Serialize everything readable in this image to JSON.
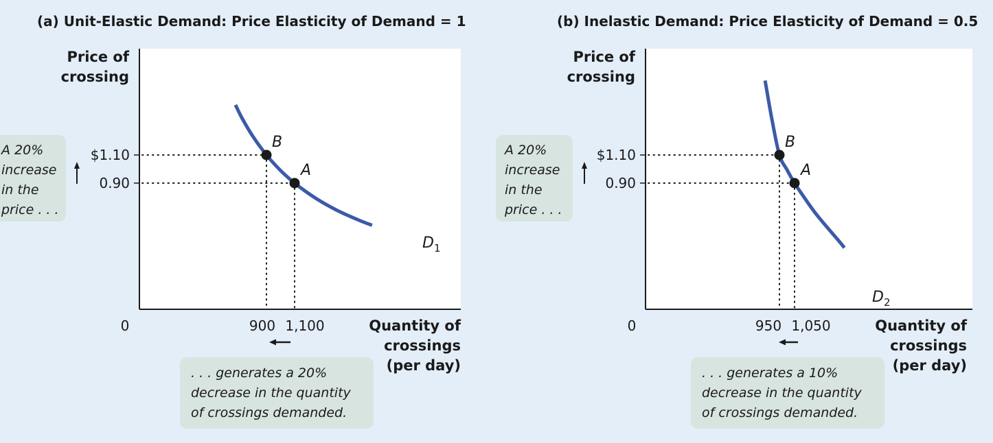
{
  "colors": {
    "background": "#e4eef8",
    "plot_area": "#ffffff",
    "curve": "#3c5aa8",
    "note_box": "#d8e4e0",
    "ink": "#1a1a1a"
  },
  "chart_data": [
    {
      "type": "line",
      "title": "(a) Unit-Elastic Demand: Price Elasticity of Demand = 1",
      "ylabel": [
        "Price of",
        "crossing"
      ],
      "xlabel": [
        "Quantity of",
        "crossings",
        "(per day)"
      ],
      "origin_label": "0",
      "x_tick_labels": [
        "900",
        "1,100"
      ],
      "y_tick_labels": [
        "$1.10",
        "0.90"
      ],
      "series": [
        {
          "name": "D1",
          "name_main": "D",
          "name_sub": "1",
          "x": [
            680,
            730,
            800,
            900,
            1000,
            1100,
            1250,
            1400,
            1550,
            1650
          ],
          "y": [
            1.456,
            1.356,
            1.238,
            1.1,
            0.99,
            0.9,
            0.792,
            0.707,
            0.639,
            0.6
          ]
        }
      ],
      "points": [
        {
          "label": "B",
          "x": 900,
          "y": 1.1
        },
        {
          "label": "A",
          "x": 1100,
          "y": 0.9
        }
      ],
      "annotations": [
        {
          "id": "price_increase",
          "lines": [
            "A 20%",
            "increase",
            "in the",
            "price . . ."
          ]
        },
        {
          "id": "quantity_decrease",
          "lines": [
            ". . . generates a 20%",
            "decrease in the quantity",
            "of crossings demanded."
          ]
        }
      ]
    },
    {
      "type": "line",
      "title": "(b) Inelastic Demand: Price Elasticity of Demand = 0.5",
      "ylabel": [
        "Price of",
        "crossing"
      ],
      "xlabel": [
        "Quantity of",
        "crossings",
        "(per day)"
      ],
      "origin_label": "0",
      "x_tick_labels": [
        "950",
        "1,050"
      ],
      "y_tick_labels": [
        "$1.10",
        "0.90"
      ],
      "series": [
        {
          "name": "D2",
          "name_main": "D",
          "name_sub": "2",
          "x": [
            855,
            900,
            950,
            1000,
            1050,
            1100,
            1200,
            1350,
            1380
          ],
          "y": [
            1.63,
            1.355,
            1.1,
            0.995,
            0.9,
            0.82,
            0.67,
            0.48,
            0.44
          ]
        }
      ],
      "points": [
        {
          "label": "B",
          "x": 950,
          "y": 1.1
        },
        {
          "label": "A",
          "x": 1050,
          "y": 0.9
        }
      ],
      "annotations": [
        {
          "id": "price_increase",
          "lines": [
            "A 20%",
            "increase",
            "in the",
            "price . . ."
          ]
        },
        {
          "id": "quantity_decrease",
          "lines": [
            ". . . generates a 10%",
            "decrease in the quantity",
            "of crossings demanded."
          ]
        }
      ]
    }
  ]
}
